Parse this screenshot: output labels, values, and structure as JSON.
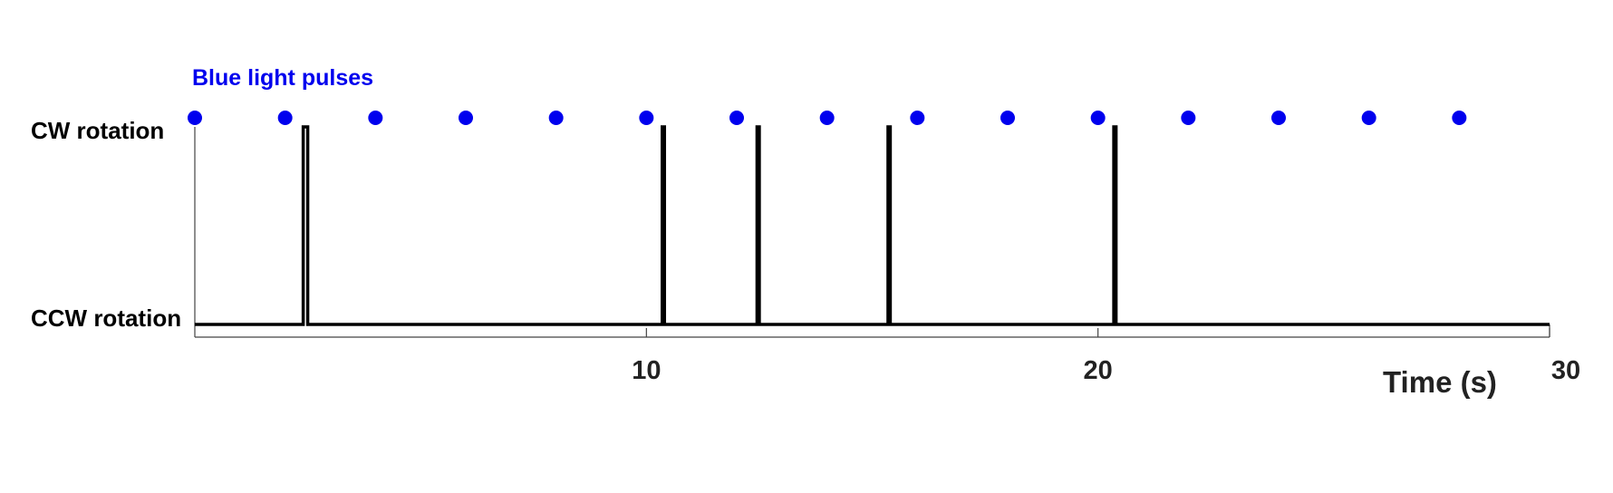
{
  "chart_data": {
    "type": "line",
    "title": "",
    "xlabel": "Time (s)",
    "ylabel": "",
    "xlim": [
      0,
      30
    ],
    "x_ticks": [
      10,
      20,
      30
    ],
    "y_states": [
      "CCW rotation",
      "CW rotation"
    ],
    "series": [
      {
        "name": "",
        "kind": "state-trace",
        "color": "#000000",
        "switch_events": [
          {
            "start": 2.4,
            "end": 2.5
          },
          {
            "start": 10.35,
            "end": 10.4
          },
          {
            "start": 12.45,
            "end": 12.5
          },
          {
            "start": 15.35,
            "end": 15.4
          },
          {
            "start": 20.35,
            "end": 20.4
          }
        ]
      },
      {
        "name": "Blue light pulses",
        "kind": "event-markers",
        "color": "#0000ee",
        "times": [
          0,
          2,
          4,
          6,
          8,
          10,
          12,
          14,
          16,
          18,
          20,
          22,
          24,
          26,
          28
        ]
      }
    ],
    "grid": false,
    "legend": "top-left"
  }
}
